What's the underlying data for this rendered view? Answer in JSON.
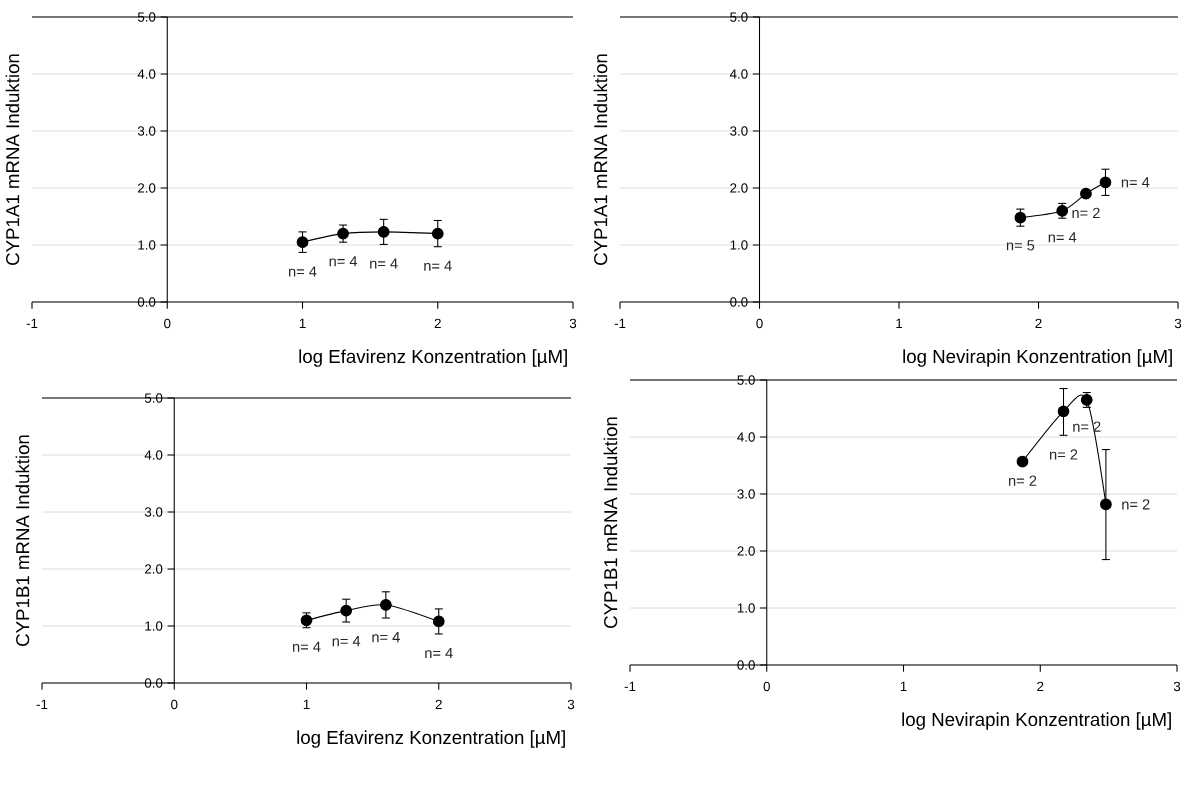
{
  "chart_data": [
    {
      "type": "line",
      "ylabel": "CYP1A1 mRNA Induktion",
      "xlabel": "log Efavirenz Konzentration [µM]",
      "x": [
        1,
        1.3,
        1.6,
        2
      ],
      "series": [
        {
          "color": "#000000",
          "values": [
            1.05,
            1.2,
            1.23,
            1.2
          ],
          "errors": [
            0.18,
            0.15,
            0.22,
            0.23
          ]
        }
      ],
      "xlim": [
        -1,
        3
      ],
      "ylim": [
        0,
        5
      ],
      "xticks": [
        -1,
        0,
        1,
        2,
        3
      ],
      "yticks": [
        {
          "value": 0,
          "label": "0.0"
        },
        {
          "value": 1,
          "label": "1.0"
        },
        {
          "value": 2,
          "label": "2.0"
        },
        {
          "value": 3,
          "label": "3.0"
        },
        {
          "value": 4,
          "label": "4.0"
        },
        {
          "value": 5,
          "label": "5.0"
        }
      ],
      "grid": "y",
      "marker": "circle",
      "line_style": "solid",
      "annotations": [
        {
          "text": "n= 4",
          "x": 1,
          "y": 1.05
        },
        {
          "text": "n= 4",
          "x": 1.3,
          "y": 1.2
        },
        {
          "text": "n= 4",
          "x": 1.6,
          "y": 1.23
        },
        {
          "text": "n= 4",
          "x": 2,
          "y": 1.2
        }
      ]
    },
    {
      "type": "line",
      "ylabel": "CYP1A1 mRNA Induktion",
      "xlabel": "log Nevirapin Konzentration [µM]",
      "x": [
        1.87,
        2.17,
        2.34,
        2.48
      ],
      "series": [
        {
          "color": "#000000",
          "values": [
            1.48,
            1.6,
            1.9,
            2.1
          ],
          "errors": [
            0.15,
            0.13,
            null,
            0.23
          ]
        }
      ],
      "xlim": [
        -1,
        3
      ],
      "ylim": [
        0,
        5
      ],
      "xticks": [
        -1,
        0,
        1,
        2,
        3
      ],
      "yticks": [
        {
          "value": 0,
          "label": "0.0"
        },
        {
          "value": 1,
          "label": "1.0"
        },
        {
          "value": 2,
          "label": "2.0"
        },
        {
          "value": 3,
          "label": "3.0"
        },
        {
          "value": 4,
          "label": "4.0"
        },
        {
          "value": 5,
          "label": "5.0"
        }
      ],
      "grid": "y",
      "marker": "circle",
      "line_style": "solid",
      "annotations": [
        {
          "text": "n= 5",
          "x": 1.87,
          "y": 1.48
        },
        {
          "text": "n= 4",
          "x": 2.17,
          "y": 1.6
        },
        {
          "text": "n= 2",
          "x": 2.34,
          "y": 1.9
        },
        {
          "text": "n= 4",
          "x": 2.48,
          "y": 2.1
        }
      ]
    },
    {
      "type": "line",
      "ylabel": "CYP1B1 mRNA Induktion",
      "xlabel": "log Efavirenz Konzentration [µM]",
      "x": [
        1,
        1.3,
        1.6,
        2
      ],
      "series": [
        {
          "color": "#000000",
          "values": [
            1.1,
            1.27,
            1.37,
            1.08
          ],
          "errors": [
            0.13,
            0.2,
            0.23,
            0.22
          ]
        }
      ],
      "xlim": [
        -1,
        3
      ],
      "ylim": [
        0,
        5
      ],
      "xticks": [
        -1,
        0,
        1,
        2,
        3
      ],
      "yticks": [
        {
          "value": 0,
          "label": "0.0"
        },
        {
          "value": 1,
          "label": "1.0"
        },
        {
          "value": 2,
          "label": "2.0"
        },
        {
          "value": 3,
          "label": "3.0"
        },
        {
          "value": 4,
          "label": "4.0"
        },
        {
          "value": 5,
          "label": "5.0"
        }
      ],
      "grid": "y",
      "marker": "circle",
      "line_style": "solid",
      "annotations": [
        {
          "text": "n= 4",
          "x": 1,
          "y": 1.1
        },
        {
          "text": "n= 4",
          "x": 1.3,
          "y": 1.27
        },
        {
          "text": "n= 4",
          "x": 1.6,
          "y": 1.37
        },
        {
          "text": "n= 4",
          "x": 2,
          "y": 1.08
        }
      ]
    },
    {
      "type": "line",
      "ylabel": "CYP1B1 mRNA Induktion",
      "xlabel": "log Nevirapin Konzentration [µM]",
      "x": [
        1.87,
        2.17,
        2.34,
        2.48
      ],
      "series": [
        {
          "color": "#000000",
          "values": [
            3.57,
            4.45,
            4.65,
            2.82
          ],
          "errors": [
            null,
            [
              4.03,
              4.85
            ],
            [
              4.52,
              4.78
            ],
            [
              1.85,
              3.78
            ]
          ]
        }
      ],
      "xlim": [
        -1,
        3
      ],
      "ylim": [
        0,
        5
      ],
      "xticks": [
        -1,
        0,
        1,
        2,
        3
      ],
      "yticks": [
        {
          "value": 0,
          "label": "0.0"
        },
        {
          "value": 1,
          "label": "1.0"
        },
        {
          "value": 2,
          "label": "2.0"
        },
        {
          "value": 3,
          "label": "3.0"
        },
        {
          "value": 4,
          "label": "4.0"
        },
        {
          "value": 5,
          "label": "5.0"
        }
      ],
      "grid": "y",
      "marker": "circle",
      "line_style": "solid",
      "annotations": [
        {
          "text": "n= 2",
          "x": 1.87,
          "y": 3.57
        },
        {
          "text": "n= 2",
          "x": 2.17,
          "y": 4.45
        },
        {
          "text": "n= 2",
          "x": 2.34,
          "y": 4.65
        },
        {
          "text": "n= 2",
          "x": 2.48,
          "y": 2.82
        }
      ]
    }
  ]
}
